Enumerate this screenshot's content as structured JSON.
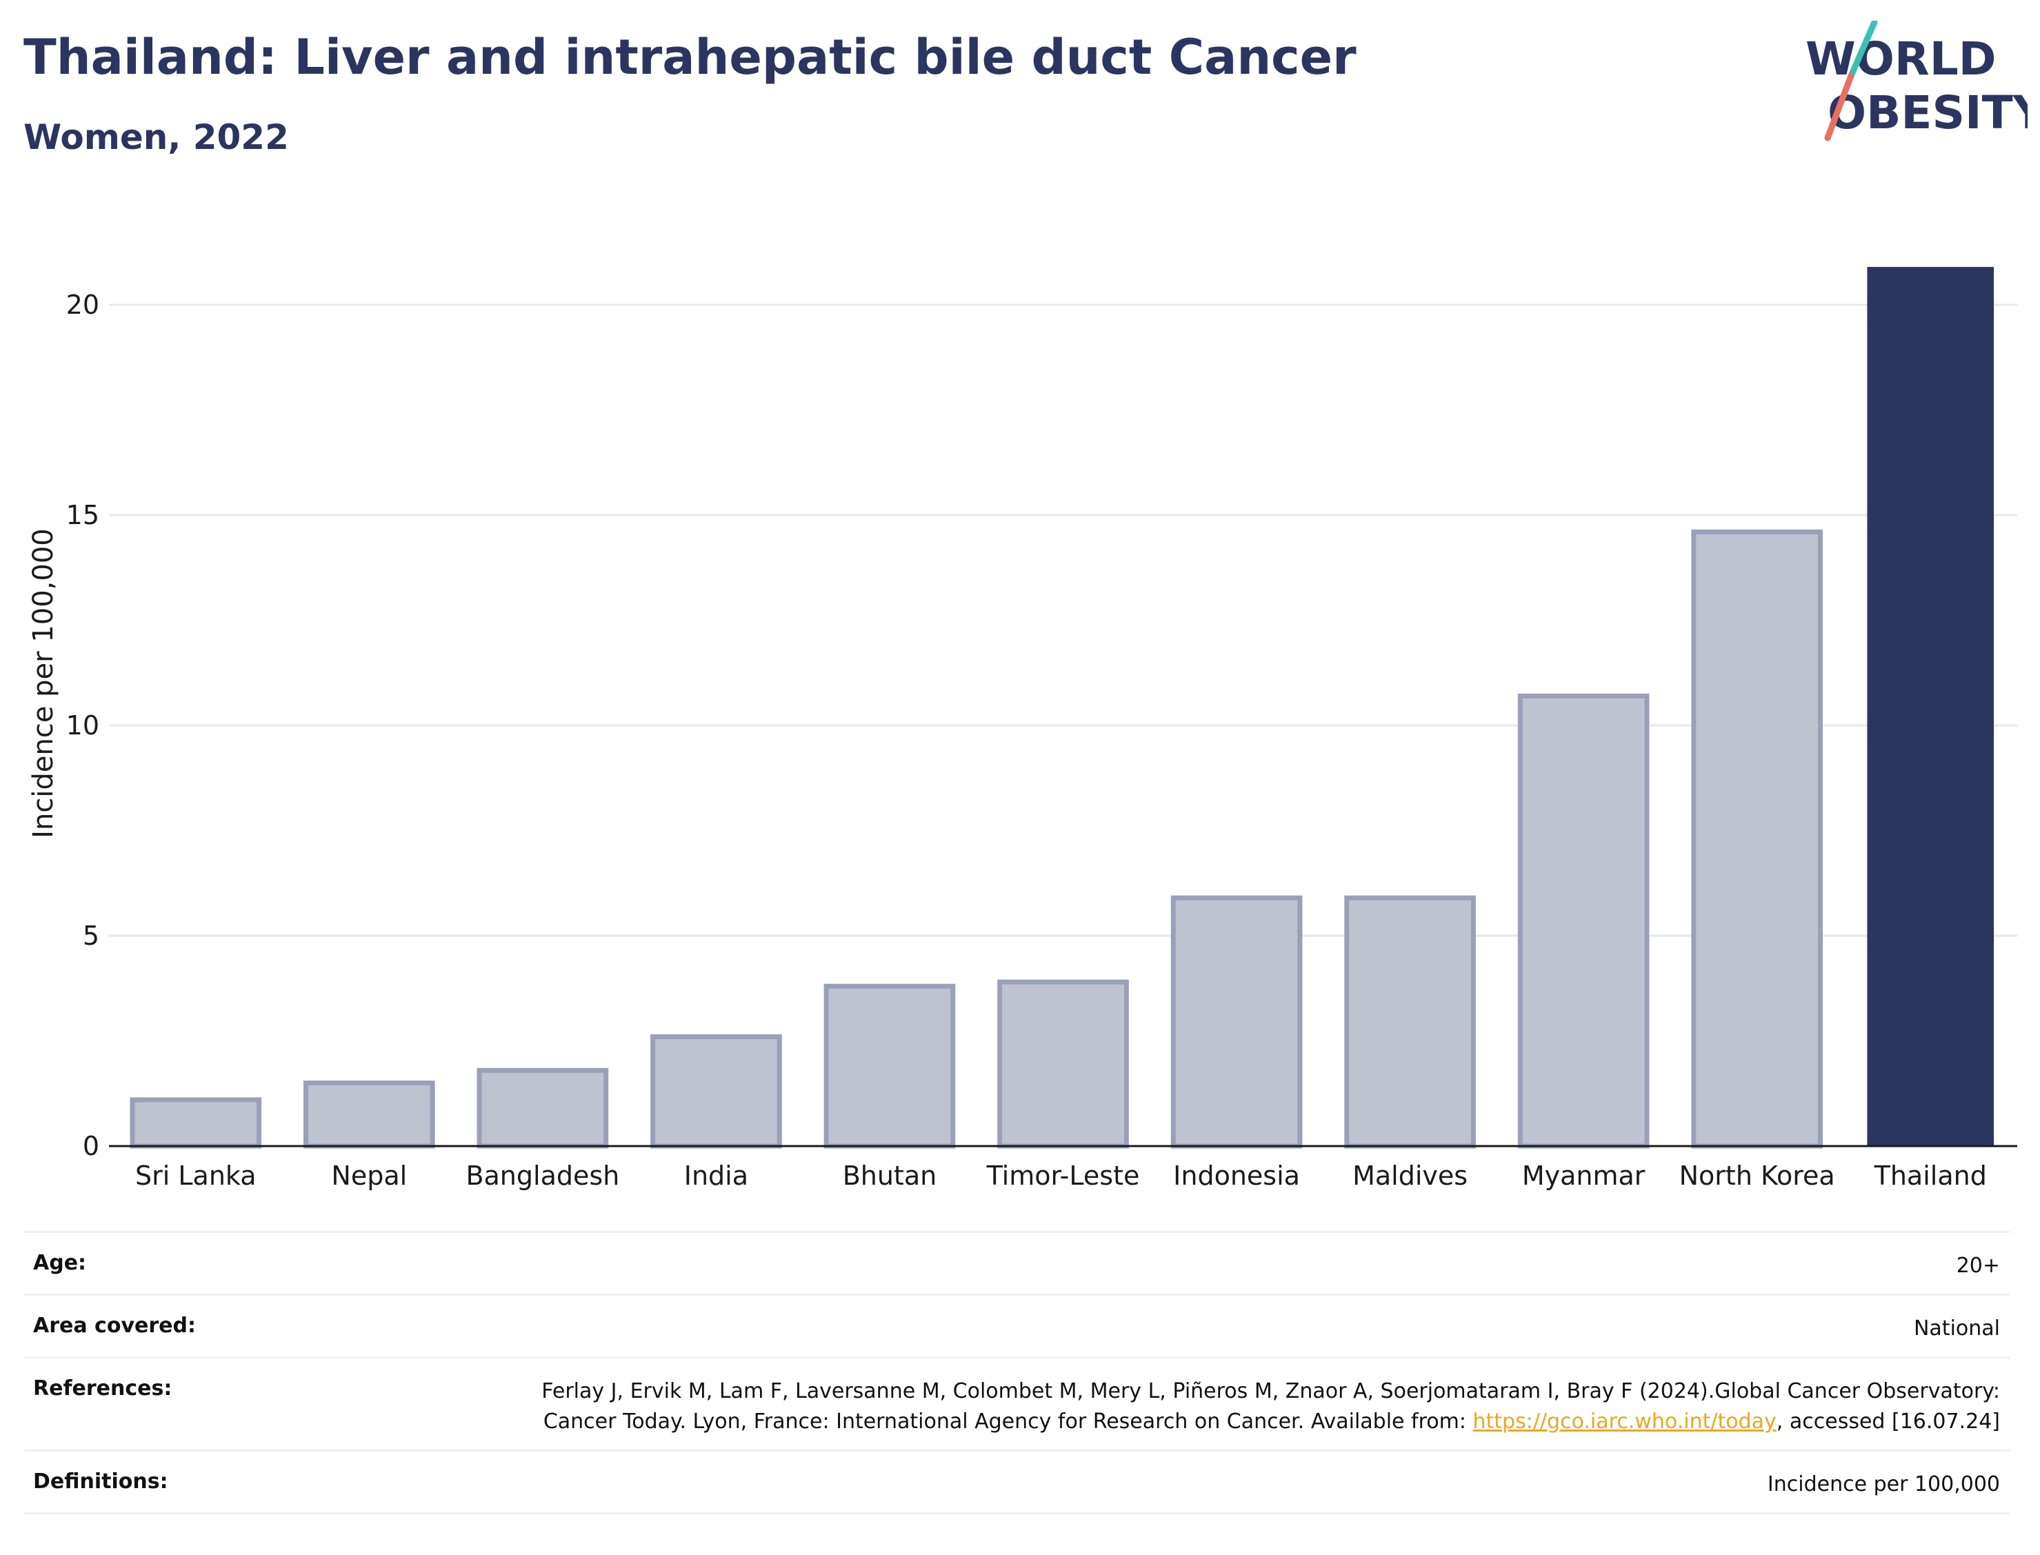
{
  "header": {
    "title": "Thailand: Liver and intrahepatic bile duct Cancer",
    "subtitle": "Women, 2022"
  },
  "logo": {
    "line1": "WORLD",
    "line2": "OBESITY",
    "text_color": "#2b3560",
    "slash_top_color": "#3cbfb5",
    "slash_bottom_color": "#e8705f"
  },
  "colors": {
    "highlight": "#2b3560",
    "other_fill": "#bfc3d0",
    "other_stroke": "#9aa0b8",
    "grid": "#e6e8f0"
  },
  "chart_data": {
    "type": "bar",
    "categories": [
      "Sri Lanka",
      "Nepal",
      "Bangladesh",
      "India",
      "Bhutan",
      "Timor-Leste",
      "Indonesia",
      "Maldives",
      "Myanmar",
      "North Korea",
      "Thailand"
    ],
    "values": [
      1.1,
      1.5,
      1.8,
      2.6,
      3.8,
      3.9,
      5.9,
      5.9,
      10.7,
      14.6,
      20.9
    ],
    "highlight": "Thailand",
    "ylabel": "Incidence per 100,000",
    "xlabel": "",
    "ylim": [
      0,
      22
    ],
    "yticks": [
      0,
      5,
      10,
      15,
      20
    ],
    "grid": true
  },
  "meta": {
    "age_label": "Age:",
    "age_value": "20+",
    "area_label": "Area covered:",
    "area_value": "National",
    "references_label": "References:",
    "references_text_1": "Ferlay J, Ervik M, Lam F, Laversanne M, Colombet M, Mery L, Piñeros M, Znaor A, Soerjomataram I, Bray F (2024).Global Cancer Observatory: Cancer Today. Lyon, France: International Agency for Research on Cancer. Available from: ",
    "references_link": "https://gco.iarc.who.int/today",
    "references_text_2": ", accessed [16.07.24]",
    "definitions_label": "Definitions:",
    "definitions_value": "Incidence per 100,000"
  }
}
